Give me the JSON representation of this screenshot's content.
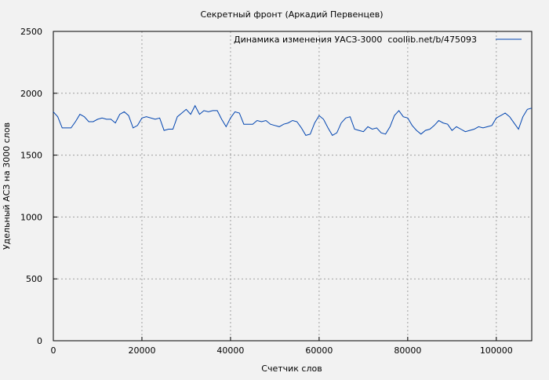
{
  "chart_data": {
    "type": "line",
    "title": "Секретный фронт (Аркадий Первенцев)",
    "xlabel": "Счетчик слов",
    "ylabel": "Удельный АСЗ на 3000 слов",
    "xlim": [
      0,
      108000
    ],
    "ylim": [
      0,
      2500
    ],
    "xticks": [
      0,
      20000,
      40000,
      60000,
      80000,
      100000
    ],
    "yticks": [
      0,
      500,
      1000,
      1500,
      2000,
      2500
    ],
    "grid": true,
    "legend_position": "top-right",
    "colors": {
      "line": "#0044b0",
      "background": "#f2f2f2",
      "grid": "#a0a0a0"
    },
    "series": [
      {
        "name": "Динамика изменения УАСЗ-3000  coollib.net/b/475093",
        "x": [
          0,
          1000,
          2000,
          4000,
          5000,
          6000,
          7000,
          8000,
          9000,
          10000,
          11000,
          12000,
          13000,
          14000,
          15000,
          16000,
          17000,
          18000,
          19000,
          20000,
          21000,
          23000,
          24000,
          25000,
          26000,
          27000,
          28000,
          29000,
          30000,
          31000,
          32000,
          33000,
          34000,
          35000,
          36000,
          37000,
          38000,
          39000,
          40000,
          41000,
          42000,
          43000,
          44000,
          45000,
          46000,
          47000,
          48000,
          49000,
          50000,
          51000,
          52000,
          53000,
          54000,
          55000,
          56000,
          57000,
          58000,
          59000,
          60000,
          61000,
          62000,
          63000,
          64000,
          65000,
          66000,
          67000,
          68000,
          69000,
          70000,
          71000,
          72000,
          73000,
          74000,
          75000,
          76000,
          77000,
          78000,
          79000,
          80000,
          81000,
          82000,
          83000,
          84000,
          85000,
          86000,
          87000,
          88000,
          89000,
          90000,
          91000,
          92000,
          93000,
          94000,
          95000,
          96000,
          97000,
          98000,
          99000,
          100000,
          101000,
          102000,
          103000,
          104000,
          105000,
          106000,
          107000,
          108000
        ],
        "y": [
          1850,
          1810,
          1720,
          1720,
          1770,
          1830,
          1810,
          1770,
          1770,
          1790,
          1800,
          1790,
          1790,
          1760,
          1830,
          1850,
          1820,
          1720,
          1740,
          1800,
          1810,
          1790,
          1800,
          1700,
          1710,
          1710,
          1810,
          1840,
          1870,
          1830,
          1900,
          1830,
          1860,
          1850,
          1860,
          1860,
          1790,
          1730,
          1800,
          1850,
          1840,
          1750,
          1750,
          1750,
          1780,
          1770,
          1780,
          1750,
          1740,
          1730,
          1750,
          1760,
          1780,
          1770,
          1720,
          1660,
          1670,
          1760,
          1820,
          1790,
          1720,
          1660,
          1680,
          1760,
          1800,
          1810,
          1710,
          1700,
          1690,
          1730,
          1710,
          1720,
          1680,
          1670,
          1730,
          1820,
          1860,
          1810,
          1800,
          1740,
          1700,
          1670,
          1700,
          1710,
          1740,
          1780,
          1760,
          1750,
          1700,
          1730,
          1710,
          1690,
          1700,
          1710,
          1730,
          1720,
          1730,
          1740,
          1800,
          1820,
          1840,
          1810,
          1760,
          1710,
          1810,
          1870,
          1880
        ]
      }
    ]
  }
}
